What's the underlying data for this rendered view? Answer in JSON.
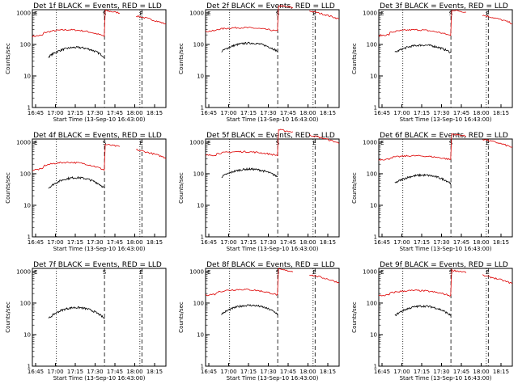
{
  "chart_data": [
    {
      "title": "Det 1f BLACK = Events, RED = LLD",
      "black": true,
      "red": true,
      "redGap": [
        0.655,
        0.77
      ],
      "blackGap": [
        0.55,
        1.0
      ],
      "redBase": 180,
      "blackBase": 40,
      "redBump": 110,
      "blackBump": 40
    },
    {
      "title": "Det 2f BLACK = Events, RED = LLD",
      "black": true,
      "red": true,
      "redGap": [
        0.655,
        0.77
      ],
      "blackGap": [
        0.55,
        1.0
      ],
      "redBase": 260,
      "blackBase": 60,
      "redBump": 80,
      "blackBump": 50
    },
    {
      "title": "Det 3f BLACK = Events, RED = LLD",
      "black": true,
      "red": true,
      "redGap": [
        0.655,
        0.77
      ],
      "blackGap": [
        0.55,
        1.0
      ],
      "redBase": 190,
      "blackBase": 55,
      "redBump": 100,
      "blackBump": 40
    },
    {
      "title": "Det 4f BLACK = Events, RED = LLD",
      "black": true,
      "red": true,
      "redGap": [
        0.655,
        0.77
      ],
      "blackGap": [
        0.55,
        1.0
      ],
      "redBase": 130,
      "blackBase": 35,
      "redBump": 100,
      "blackBump": 40
    },
    {
      "title": "Det 5f BLACK = Events, RED = LLD",
      "black": true,
      "red": true,
      "redGap": [
        0.655,
        0.77
      ],
      "blackGap": [
        0.55,
        1.0
      ],
      "redBase": 380,
      "blackBase": 80,
      "redBump": 120,
      "blackBump": 60
    },
    {
      "title": "Det 6f BLACK = Events, RED = LLD",
      "black": true,
      "red": true,
      "redGap": [
        0.655,
        0.77
      ],
      "blackGap": [
        0.55,
        1.0
      ],
      "redBase": 280,
      "blackBase": 50,
      "redBump": 90,
      "blackBump": 40
    },
    {
      "title": "Det 7f BLACK = Events, RED = LLD",
      "black": true,
      "red": false,
      "redGap": [
        0.655,
        0.77
      ],
      "blackGap": [
        0.55,
        1.0
      ],
      "redBase": 0,
      "blackBase": 32,
      "redBump": 0,
      "blackBump": 40
    },
    {
      "title": "Det 8f BLACK = Events, RED = LLD",
      "black": true,
      "red": true,
      "redGap": [
        0.655,
        0.77
      ],
      "blackGap": [
        0.55,
        1.0
      ],
      "redBase": 180,
      "blackBase": 45,
      "redBump": 90,
      "blackBump": 40
    },
    {
      "title": "Det 9f BLACK = Events, RED = LLD",
      "black": true,
      "red": true,
      "redGap": [
        0.655,
        0.77
      ],
      "blackGap": [
        0.55,
        1.0
      ],
      "redBase": 170,
      "blackBase": 40,
      "redBump": 80,
      "blackBump": 40
    }
  ],
  "axes": {
    "xticks": [
      "16:45",
      "17:00",
      "17:15",
      "17:30",
      "17:45",
      "18:00",
      "18:15"
    ],
    "yticks": [
      "1",
      "10",
      "100",
      "1000"
    ],
    "ylabel": "Counts/sec",
    "xlabel": "Start Time (13-Sep-10 16:43:00)",
    "markerS": "S",
    "markerE": "E"
  }
}
